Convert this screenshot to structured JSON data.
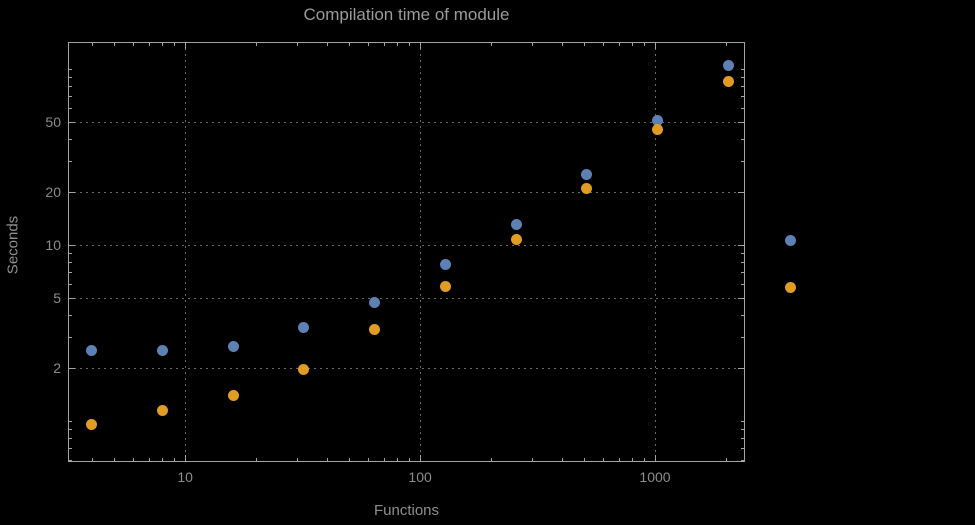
{
  "chart_data": {
    "type": "scatter",
    "title": "Compilation time of module",
    "xlabel": "Functions",
    "ylabel": "Seconds",
    "x_scale": "log",
    "y_scale": "log",
    "xlim": [
      3.17,
      2416
    ],
    "ylim": [
      0.585,
      142
    ],
    "grid": "dotted",
    "x": [
      4,
      8,
      16,
      32,
      64,
      128,
      256,
      512,
      1024,
      2048
    ],
    "series": [
      {
        "name": "series-1-blue",
        "color": "#5E81B5",
        "values": [
          2.5,
          2.5,
          2.65,
          3.4,
          4.7,
          7.7,
          13,
          25,
          51,
          105
        ]
      },
      {
        "name": "series-2-orange",
        "color": "#E19C24",
        "values": [
          0.95,
          1.15,
          1.4,
          1.95,
          3.3,
          5.8,
          10.8,
          21,
          45,
          85
        ]
      }
    ],
    "x_ticks_major": [
      {
        "value": 10,
        "label": "10"
      },
      {
        "value": 100,
        "label": "100"
      },
      {
        "value": 1000,
        "label": "1000"
      }
    ],
    "x_ticks_minor": [
      4,
      5,
      6,
      7,
      8,
      9,
      20,
      30,
      40,
      50,
      60,
      70,
      80,
      90,
      200,
      300,
      400,
      500,
      600,
      700,
      800,
      900,
      2000
    ],
    "y_ticks_major": [
      {
        "value": 2,
        "label": "2"
      },
      {
        "value": 5,
        "label": "5"
      },
      {
        "value": 10,
        "label": "10"
      },
      {
        "value": 20,
        "label": "20"
      },
      {
        "value": 50,
        "label": "50"
      }
    ],
    "y_ticks_minor": [
      0.6,
      0.7,
      0.8,
      0.9,
      1,
      3,
      4,
      6,
      7,
      8,
      9,
      30,
      40,
      60,
      70,
      80,
      90,
      100
    ],
    "gridlines_x": [
      10,
      100,
      1000
    ],
    "gridlines_y": [
      2,
      5,
      10,
      20,
      50
    ],
    "legend_markers": [
      {
        "name": "legend-marker-blue",
        "color": "#5E81B5"
      },
      {
        "name": "legend-marker-orange",
        "color": "#E19C24"
      }
    ],
    "legend_position": "right",
    "colors": {
      "background": "#000000",
      "frame": "#A3A3A3",
      "grid": "#6B6B6B",
      "text": "#8F8F8F"
    }
  }
}
